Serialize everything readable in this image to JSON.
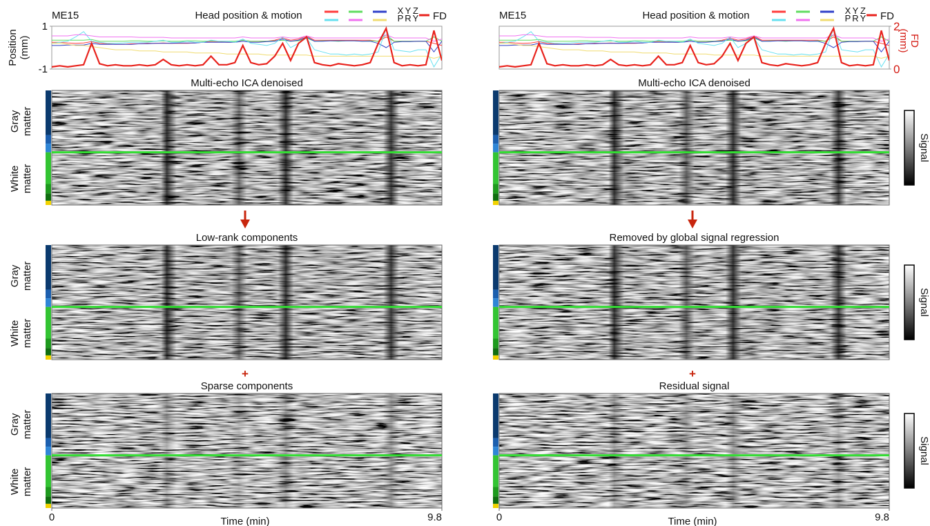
{
  "chart_data": {
    "type": "line",
    "subject": "ME15",
    "title": "Head position & motion",
    "x": [
      0,
      0.2,
      0.4,
      0.6,
      0.8,
      1.0,
      1.2,
      1.4,
      1.6,
      1.8,
      2.0,
      2.2,
      2.4,
      2.6,
      2.8,
      3.0,
      3.2,
      3.4,
      3.6,
      3.8,
      4.0,
      4.2,
      4.4,
      4.6,
      4.8,
      5.0,
      5.2,
      5.4,
      5.6,
      5.8,
      6.0,
      6.2,
      6.4,
      6.6,
      6.8,
      7.0,
      7.2,
      7.4,
      7.6,
      7.8,
      8.0,
      8.2,
      8.4,
      8.6,
      8.8,
      9.0,
      9.2,
      9.4,
      9.6,
      9.8
    ],
    "xlim": [
      0,
      9.8
    ],
    "xticks": [
      0,
      9.8
    ],
    "xlabel": "Time (min)",
    "ylabel": [
      "Position",
      "(mm)"
    ],
    "ylim": [
      -1,
      1
    ],
    "yticks": [
      1,
      -1
    ],
    "y2label": [
      "FD",
      "(mm)"
    ],
    "y2lim": [
      0,
      2
    ],
    "y2ticks": [
      2,
      0
    ],
    "series": [
      {
        "name": "X",
        "color": "#ff3b3b",
        "values": [
          0.25,
          0.25,
          0.22,
          0.2,
          0.22,
          0.28,
          0.2,
          0.18,
          0.15,
          0.15,
          0.18,
          0.18,
          0.2,
          0.2,
          0.22,
          0.2,
          0.2,
          0.2,
          0.22,
          0.25,
          0.3,
          0.28,
          0.25,
          0.25,
          0.35,
          0.3,
          0.3,
          0.3,
          0.35,
          0.45,
          0.35,
          0.4,
          0.55,
          0.35,
          0.35,
          0.35,
          0.35,
          0.35,
          0.35,
          0.35,
          0.35,
          0.3,
          0.5,
          0.3,
          0.3,
          0.3,
          0.3,
          0.3,
          0.2,
          0.1
        ]
      },
      {
        "name": "Y",
        "color": "#5fdc5f",
        "values": [
          0.35,
          0.35,
          0.35,
          0.35,
          0.35,
          0.38,
          0.3,
          0.3,
          0.3,
          0.3,
          0.32,
          0.32,
          0.3,
          0.3,
          0.32,
          0.3,
          0.3,
          0.32,
          0.32,
          0.3,
          0.32,
          0.3,
          0.3,
          0.3,
          0.35,
          0.3,
          0.3,
          0.3,
          0.32,
          0.35,
          0.3,
          0.32,
          0.45,
          0.3,
          0.32,
          0.32,
          0.3,
          0.32,
          0.32,
          0.3,
          0.32,
          0.3,
          0.6,
          0.3,
          0.3,
          0.3,
          0.3,
          0.3,
          0.5,
          0.3
        ]
      },
      {
        "name": "Z",
        "color": "#2f3fc8",
        "values": [
          0.1,
          0.1,
          0.12,
          0.12,
          0.12,
          0.2,
          0.15,
          0.15,
          0.15,
          0.15,
          0.15,
          0.18,
          0.18,
          0.2,
          0.2,
          0.2,
          0.22,
          0.22,
          0.22,
          0.25,
          0.25,
          0.25,
          0.25,
          0.25,
          0.3,
          0.25,
          0.25,
          0.28,
          0.3,
          0.4,
          0.3,
          0.35,
          0.5,
          0.3,
          0.3,
          0.32,
          0.32,
          0.32,
          0.32,
          0.3,
          0.3,
          0.2,
          0.0,
          0.25,
          0.28,
          0.28,
          0.3,
          0.3,
          -0.2,
          0.3
        ]
      },
      {
        "name": "P",
        "color": "#66e0f0",
        "values": [
          0.2,
          0.25,
          0.3,
          0.5,
          0.75,
          0.3,
          0.25,
          0.2,
          0.2,
          0.22,
          0.25,
          0.25,
          0.25,
          0.3,
          0.35,
          0.25,
          0.25,
          0.3,
          0.25,
          0.25,
          0.35,
          0.3,
          0.3,
          0.25,
          0.4,
          0.2,
          0.15,
          0.1,
          0.2,
          0.5,
          0.0,
          0.2,
          0.45,
          -0.1,
          -0.2,
          -0.3,
          -0.3,
          -0.35,
          -0.3,
          -0.35,
          -0.3,
          -0.2,
          0.9,
          -0.1,
          -0.15,
          -0.2,
          -0.1,
          -0.1,
          -0.9,
          -0.3
        ]
      },
      {
        "name": "R",
        "color": "#f070f0",
        "values": [
          0.55,
          0.55,
          0.55,
          0.6,
          0.6,
          0.55,
          0.5,
          0.5,
          0.5,
          0.5,
          0.5,
          0.48,
          0.48,
          0.48,
          0.48,
          0.45,
          0.45,
          0.45,
          0.45,
          0.45,
          0.45,
          0.45,
          0.45,
          0.45,
          0.5,
          0.45,
          0.45,
          0.45,
          0.45,
          0.5,
          0.45,
          0.45,
          0.55,
          0.45,
          0.45,
          0.45,
          0.45,
          0.45,
          0.45,
          0.45,
          0.45,
          0.45,
          0.6,
          0.45,
          0.45,
          0.45,
          0.45,
          0.45,
          0.3,
          0.4
        ]
      },
      {
        "name": "Y",
        "color": "#f0dc70",
        "values": [
          0.2,
          0.2,
          0.15,
          0.1,
          0.1,
          0.05,
          0.0,
          -0.05,
          -0.1,
          -0.1,
          -0.1,
          -0.15,
          -0.15,
          -0.15,
          -0.2,
          -0.2,
          -0.2,
          -0.2,
          -0.25,
          -0.25,
          -0.25,
          -0.25,
          -0.3,
          -0.3,
          -0.3,
          -0.3,
          -0.3,
          -0.35,
          -0.35,
          -0.35,
          -0.35,
          -0.35,
          -0.35,
          -0.4,
          -0.4,
          -0.4,
          -0.4,
          -0.4,
          -0.4,
          -0.4,
          -0.4,
          -0.4,
          -0.4,
          -0.4,
          -0.4,
          -0.4,
          -0.4,
          -0.4,
          -0.5,
          -0.4
        ]
      },
      {
        "name": "FD",
        "color": "#e8221c",
        "axis": "y2",
        "values": [
          0.1,
          0.15,
          0.1,
          0.15,
          0.2,
          1.2,
          0.25,
          0.15,
          0.2,
          0.15,
          0.15,
          0.2,
          0.15,
          0.2,
          0.45,
          0.2,
          0.15,
          0.2,
          0.15,
          0.2,
          0.6,
          0.2,
          0.2,
          0.3,
          1.1,
          0.3,
          0.2,
          0.25,
          0.6,
          1.2,
          0.4,
          1.2,
          1.5,
          0.3,
          0.2,
          0.15,
          0.25,
          0.2,
          0.15,
          0.2,
          0.3,
          1.2,
          1.9,
          0.3,
          0.15,
          0.2,
          0.15,
          0.2,
          1.8,
          0.4
        ]
      }
    ]
  },
  "row_labels": [
    [
      "Gray",
      "matter"
    ],
    [
      "White",
      "matter"
    ]
  ],
  "colorbar_label": "Signal",
  "connector": "+",
  "panels": [
    {
      "axis": "y",
      "colorbar": false,
      "carpets": [
        "Multi-echo ICA denoised",
        "Low-rank components",
        "Sparse components"
      ]
    },
    {
      "axis": "y2",
      "colorbar": true,
      "carpets": [
        "Multi-echo ICA denoised",
        "Removed by global signal regression",
        "Residual signal"
      ]
    }
  ]
}
